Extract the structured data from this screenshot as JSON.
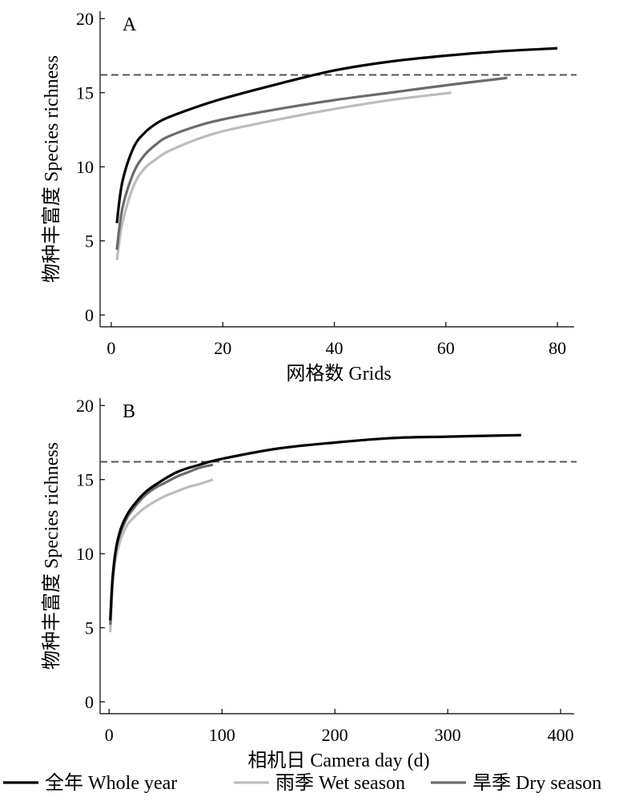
{
  "chart_data": [
    {
      "type": "line",
      "panel_label": "A",
      "xlabel": "网格数 Grids",
      "ylabel": "物种丰富度 Species richness",
      "xlim": [
        -2,
        83
      ],
      "ylim": [
        -0.8,
        20.5
      ],
      "xticks": [
        0,
        20,
        40,
        60,
        80
      ],
      "yticks": [
        0,
        5,
        10,
        15,
        20
      ],
      "reference_line": {
        "y": 16.2,
        "style": "dashed"
      },
      "series": [
        {
          "key": "whole",
          "color": "#000000",
          "x": [
            1,
            2,
            4,
            6,
            8,
            10,
            15,
            20,
            30,
            40,
            50,
            60,
            70,
            80
          ],
          "y": [
            6.2,
            9.0,
            11.3,
            12.3,
            12.9,
            13.3,
            14.0,
            14.6,
            15.6,
            16.5,
            17.1,
            17.5,
            17.8,
            18.0
          ]
        },
        {
          "key": "wet",
          "color": "#bdbdbd",
          "x": [
            1,
            2,
            4,
            6,
            8,
            10,
            15,
            20,
            30,
            40,
            50,
            61
          ],
          "y": [
            3.7,
            6.2,
            8.7,
            9.9,
            10.5,
            11.0,
            11.8,
            12.4,
            13.2,
            13.9,
            14.5,
            15.0
          ]
        },
        {
          "key": "dry",
          "color": "#6b6b6b",
          "x": [
            1,
            2,
            4,
            6,
            8,
            10,
            15,
            20,
            30,
            40,
            50,
            60,
            71
          ],
          "y": [
            4.4,
            7.2,
            9.6,
            10.8,
            11.5,
            12.0,
            12.7,
            13.2,
            13.9,
            14.5,
            15.0,
            15.5,
            16.0
          ]
        }
      ]
    },
    {
      "type": "line",
      "panel_label": "B",
      "xlabel": "相机日 Camera day (d)",
      "ylabel": "物种丰富度 Species richness",
      "xlim": [
        -8,
        412
      ],
      "ylim": [
        -0.8,
        20.5
      ],
      "xticks": [
        0,
        100,
        200,
        300,
        400
      ],
      "yticks": [
        0,
        5,
        10,
        15,
        20
      ],
      "reference_line": {
        "y": 16.2,
        "style": "dashed"
      },
      "series": [
        {
          "key": "whole",
          "color": "#000000",
          "x": [
            1,
            3,
            6,
            10,
            15,
            20,
            30,
            40,
            60,
            80,
            100,
            150,
            200,
            250,
            300,
            365
          ],
          "y": [
            5.5,
            8.3,
            10.3,
            11.6,
            12.5,
            13.1,
            14.0,
            14.6,
            15.5,
            16.0,
            16.4,
            17.1,
            17.5,
            17.8,
            17.9,
            18.0
          ]
        },
        {
          "key": "wet",
          "color": "#bdbdbd",
          "x": [
            1,
            3,
            6,
            10,
            15,
            20,
            30,
            40,
            50,
            60,
            70,
            80,
            92
          ],
          "y": [
            4.7,
            7.7,
            9.7,
            10.9,
            11.8,
            12.3,
            13.0,
            13.5,
            13.9,
            14.2,
            14.5,
            14.7,
            15.0
          ]
        },
        {
          "key": "dry",
          "color": "#6b6b6b",
          "x": [
            1,
            3,
            6,
            10,
            15,
            20,
            30,
            40,
            50,
            60,
            70,
            80,
            92
          ],
          "y": [
            5.2,
            8.2,
            10.2,
            11.4,
            12.3,
            12.9,
            13.8,
            14.4,
            14.8,
            15.2,
            15.5,
            15.8,
            16.0
          ]
        }
      ]
    }
  ],
  "legend": {
    "position": "bottom",
    "items": [
      {
        "key": "whole",
        "label": "全年 Whole year",
        "color": "#000000"
      },
      {
        "key": "wet",
        "label": "雨季 Wet season",
        "color": "#bdbdbd"
      },
      {
        "key": "dry",
        "label": "旱季 Dry season",
        "color": "#6b6b6b"
      }
    ]
  }
}
